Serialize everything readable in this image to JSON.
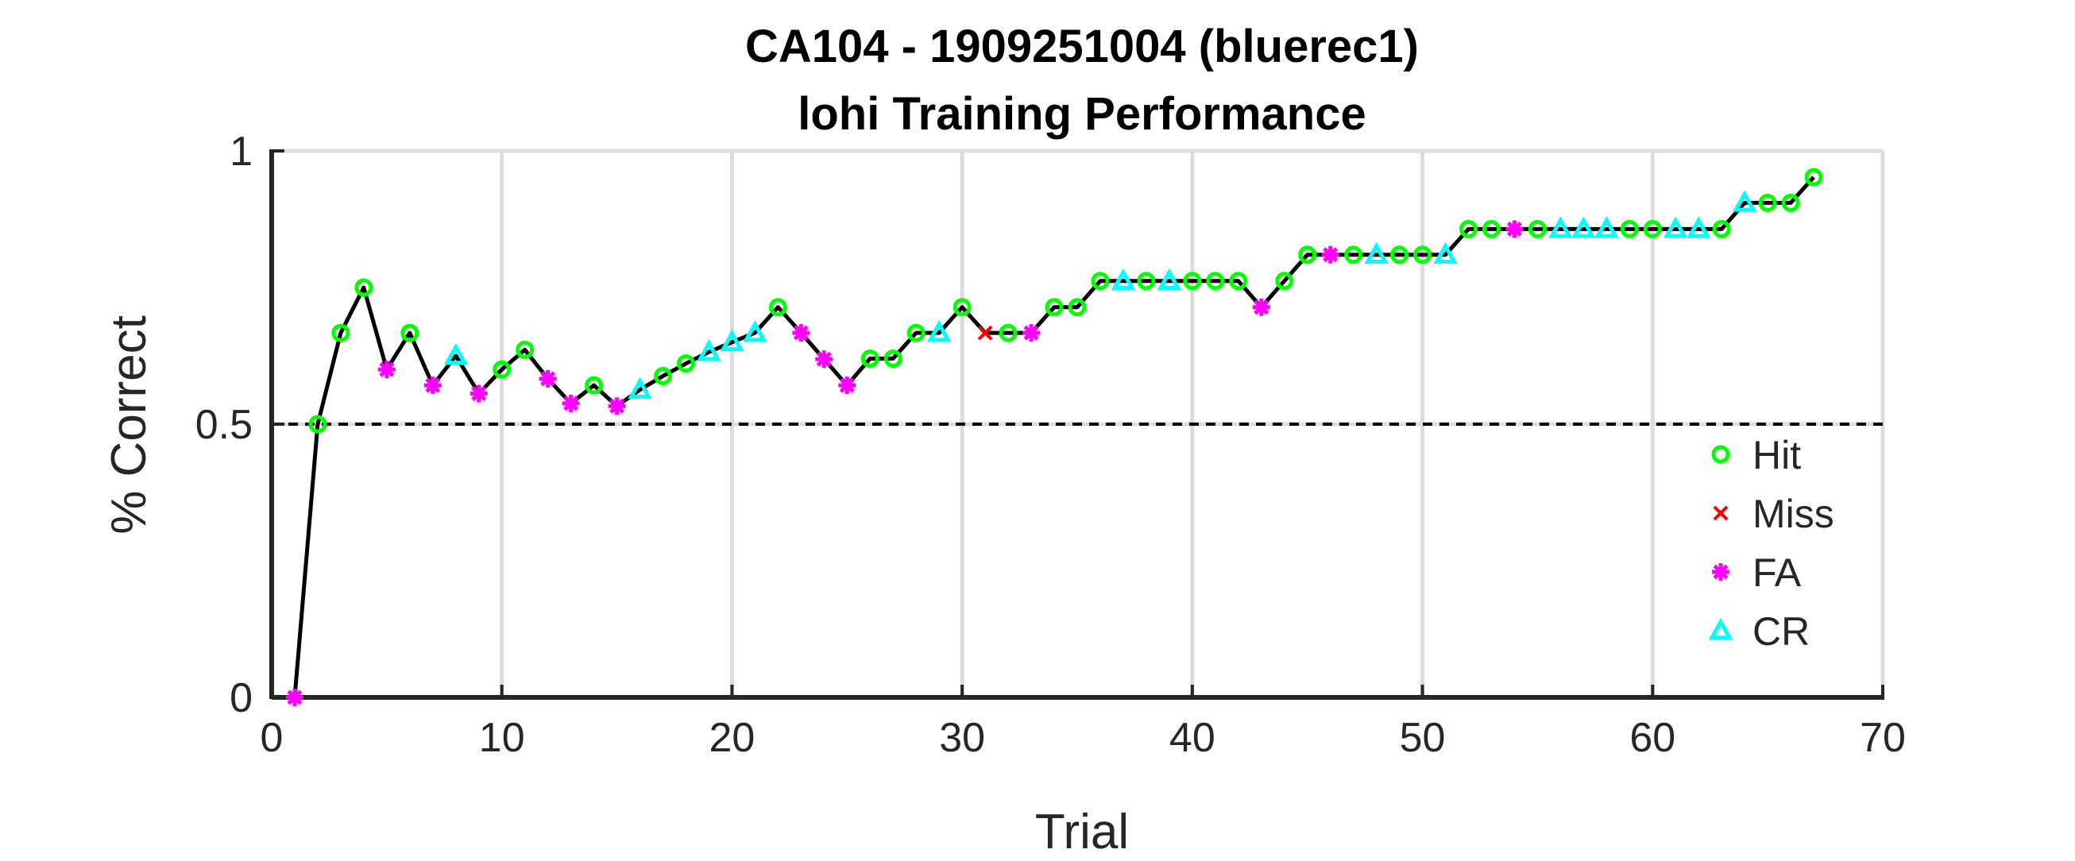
{
  "chart_data": {
    "type": "line",
    "title": "CA104 - 1909251004 (bluerec1)",
    "subtitle": "lohi Training Performance",
    "xlabel": "Trial",
    "ylabel": "% Correct",
    "xlim": [
      0,
      70
    ],
    "ylim": [
      0,
      1
    ],
    "xticks": [
      "0",
      "10",
      "20",
      "30",
      "40",
      "50",
      "60",
      "70"
    ],
    "yticks": [
      "0",
      "0.5",
      "1"
    ],
    "grid": true,
    "reference_line": 0.5,
    "legend_position": "bottom-right",
    "colors": {
      "line": "#000000",
      "Hit": "#00ff00",
      "Miss": "#ff0000",
      "FA": "#ff00ff",
      "CR": "#00ffff",
      "grid": "#dcdcdc",
      "axis": "#262626"
    },
    "legend": [
      "Hit",
      "Miss",
      "FA",
      "CR"
    ],
    "x": [
      1,
      2,
      3,
      4,
      5,
      6,
      7,
      8,
      9,
      10,
      11,
      12,
      13,
      14,
      15,
      16,
      17,
      18,
      19,
      20,
      21,
      22,
      23,
      24,
      25,
      26,
      27,
      28,
      29,
      30,
      31,
      32,
      33,
      34,
      35,
      36,
      37,
      38,
      39,
      40,
      41,
      42,
      43,
      44,
      45,
      46,
      47,
      48,
      49,
      50,
      51,
      52,
      53,
      54,
      55,
      56,
      57,
      58,
      59,
      60,
      61,
      62,
      63,
      64,
      65,
      66,
      67
    ],
    "y": [
      0,
      0.5,
      0.667,
      0.75,
      0.6,
      0.667,
      0.571,
      0.625,
      0.556,
      0.6,
      0.636,
      0.583,
      0.538,
      0.571,
      0.533,
      0.563,
      0.588,
      0.611,
      0.632,
      0.65,
      0.667,
      0.714,
      0.667,
      0.619,
      0.571,
      0.62,
      0.62,
      0.667,
      0.667,
      0.714,
      0.667,
      0.667,
      0.667,
      0.714,
      0.714,
      0.762,
      0.762,
      0.762,
      0.762,
      0.762,
      0.762,
      0.762,
      0.714,
      0.762,
      0.81,
      0.81,
      0.81,
      0.81,
      0.81,
      0.81,
      0.81,
      0.857,
      0.857,
      0.857,
      0.857,
      0.857,
      0.857,
      0.857,
      0.857,
      0.857,
      0.857,
      0.857,
      0.857,
      0.905,
      0.905,
      0.905,
      0.952
    ],
    "outcomes": [
      "FA",
      "Hit",
      "Hit",
      "Hit",
      "FA",
      "Hit",
      "FA",
      "CR",
      "FA",
      "Hit",
      "Hit",
      "FA",
      "FA",
      "Hit",
      "FA",
      "CR",
      "Hit",
      "Hit",
      "CR",
      "CR",
      "CR",
      "Hit",
      "FA",
      "FA",
      "FA",
      "Hit",
      "Hit",
      "Hit",
      "CR",
      "Hit",
      "Miss",
      "Hit",
      "FA",
      "Hit",
      "Hit",
      "Hit",
      "CR",
      "Hit",
      "CR",
      "Hit",
      "Hit",
      "Hit",
      "FA",
      "Hit",
      "Hit",
      "FA",
      "Hit",
      "CR",
      "Hit",
      "Hit",
      "CR",
      "Hit",
      "Hit",
      "FA",
      "Hit",
      "CR",
      "CR",
      "CR",
      "Hit",
      "Hit",
      "CR",
      "CR",
      "Hit",
      "CR",
      "Hit",
      "Hit",
      "Hit"
    ]
  }
}
